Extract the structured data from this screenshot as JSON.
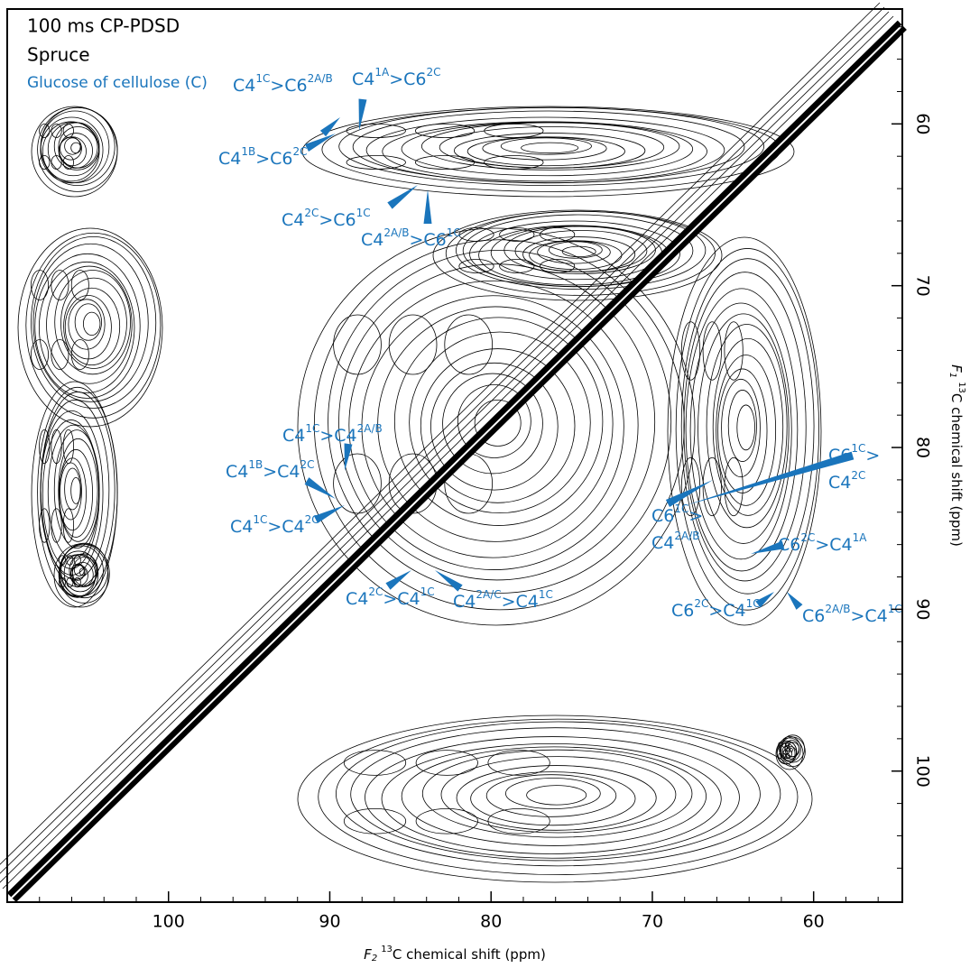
{
  "chart_data": {
    "type": "contour",
    "title": "100 ms CP-PDSD",
    "subtitle": "Spruce",
    "group_label": "Glucose of cellulose (C)",
    "xlabel": {
      "var": "F",
      "sub": "2",
      "iso": "13",
      "rest": "C chemical shift (ppm)"
    },
    "ylabel": {
      "var": "F",
      "sub": "1",
      "iso": "13",
      "rest": "C chemical shift (ppm)"
    },
    "xlim": [
      110,
      54.5
    ],
    "ylim": [
      52.9,
      108.1
    ],
    "xticks": [
      100,
      90,
      80,
      70,
      60
    ],
    "yticks": [
      60,
      70,
      80,
      90,
      100
    ],
    "xminorticks": [
      108,
      106,
      104,
      102,
      98,
      96,
      94,
      92,
      88,
      86,
      84,
      82,
      78,
      76,
      74,
      72,
      68,
      66,
      64,
      62,
      58,
      56
    ],
    "yminorticks": [
      54,
      56,
      58,
      62,
      64,
      66,
      68,
      72,
      74,
      76,
      78,
      82,
      84,
      86,
      88,
      92,
      94,
      96,
      98,
      102,
      104,
      106
    ],
    "annotation_color": "#1a75bc",
    "annotations": [
      {
        "lines": [
          [
            "C4",
            "1C",
            ">C6",
            "2A/B"
          ]
        ]
      },
      {
        "lines": [
          [
            "C4",
            "1A",
            ">C6",
            "2C"
          ]
        ]
      },
      {
        "lines": [
          [
            "C4",
            "1B",
            ">C6",
            "2C"
          ]
        ]
      },
      {
        "lines": [
          [
            "C4",
            "2C",
            ">C6",
            "1C"
          ]
        ]
      },
      {
        "lines": [
          [
            "C4",
            "2A/B",
            ">C6",
            "1C"
          ]
        ]
      },
      {
        "lines": [
          [
            "C4",
            "1C",
            ">C4",
            "2A/B"
          ]
        ]
      },
      {
        "lines": [
          [
            "C4",
            "1B",
            ">C4",
            "2C"
          ]
        ]
      },
      {
        "lines": [
          [
            "C4",
            "1C",
            ">C4",
            "2C"
          ]
        ]
      },
      {
        "lines": [
          [
            "C6",
            "1C",
            ">"
          ],
          [
            "C4",
            "2C"
          ]
        ]
      },
      {
        "lines": [
          [
            "C6",
            "1C",
            ">"
          ],
          [
            "C4",
            "2A/B"
          ]
        ]
      },
      {
        "lines": [
          [
            "C6",
            "2C",
            ">C4",
            "1A"
          ]
        ]
      },
      {
        "lines": [
          [
            "C4",
            "2C",
            ">C4",
            "1C"
          ]
        ]
      },
      {
        "lines": [
          [
            "C4",
            "2A/C",
            ">C4",
            "1C"
          ]
        ]
      },
      {
        "lines": [
          [
            "C6",
            "2C",
            ">C4",
            "1C"
          ]
        ]
      },
      {
        "lines": [
          [
            "C6",
            "2A/B",
            ">C4",
            "1C"
          ]
        ]
      }
    ]
  }
}
